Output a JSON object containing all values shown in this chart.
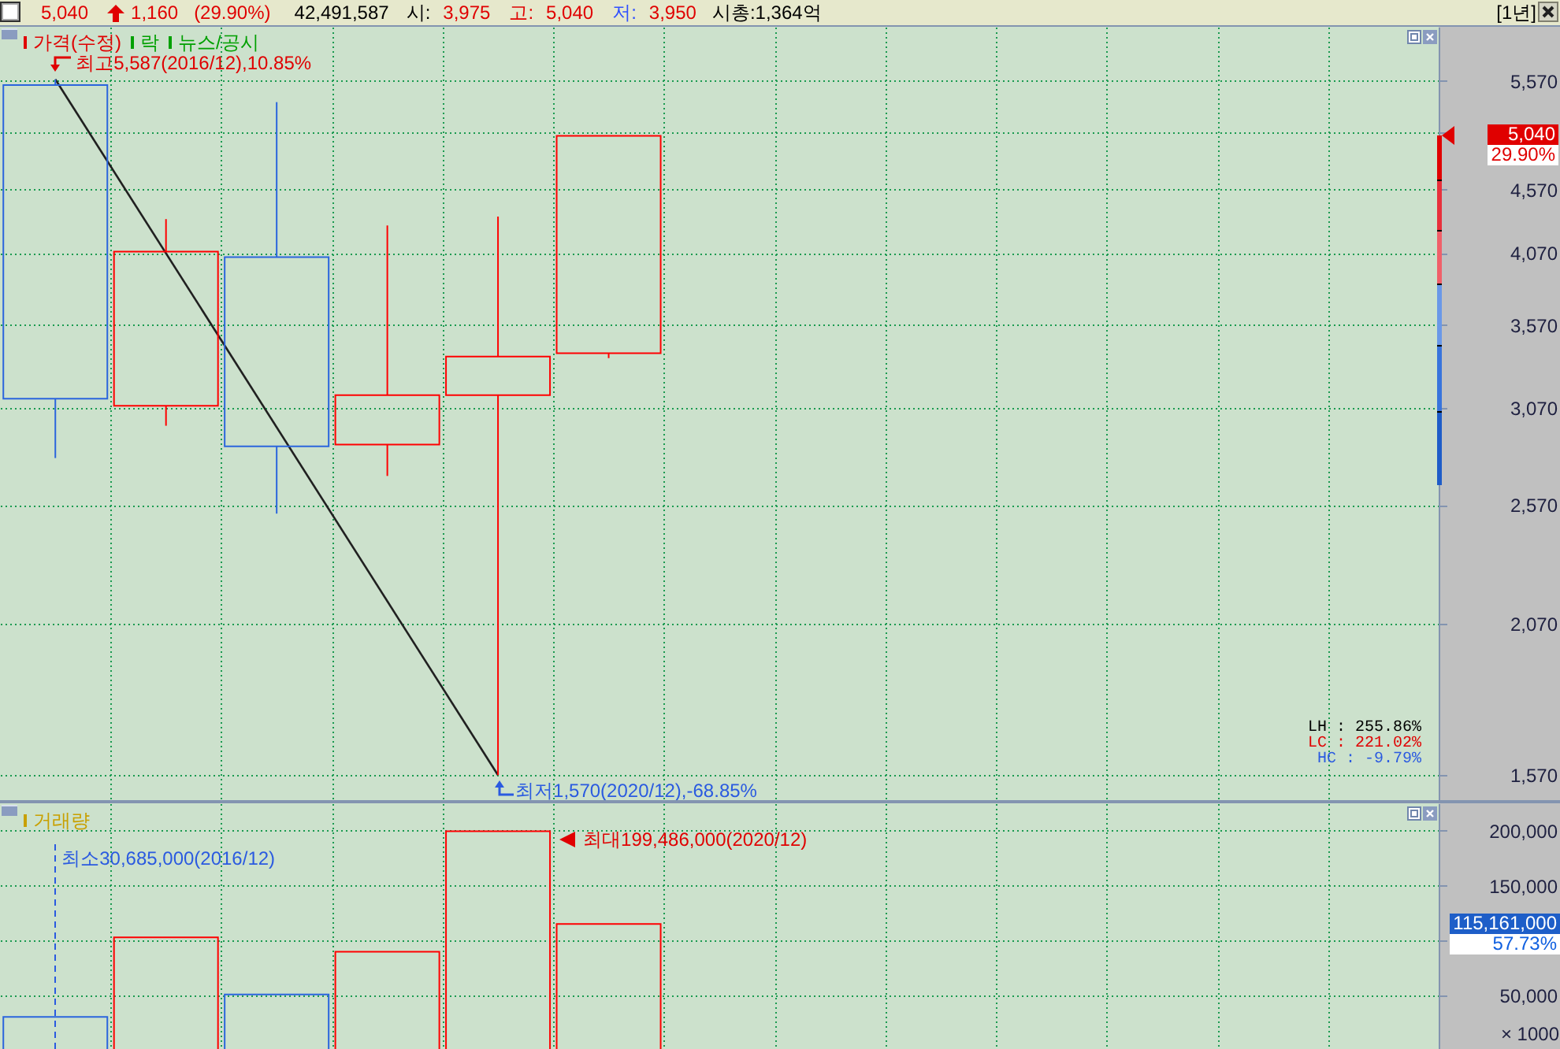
{
  "chart_data": [
    {
      "type": "other",
      "annotations": [
        "5,040",
        "1,160",
        "(29.90%)",
        "42,491,587",
        "시:",
        "3,975",
        "고:",
        "5,040",
        "저:",
        "3,950",
        "시총:1,364억",
        "[1년]"
      ]
    },
    {
      "type": "candlestick",
      "categories": [
        null,
        null,
        null,
        null,
        null,
        null,
        null,
        null,
        null,
        null,
        null,
        null,
        null
      ],
      "ohlc": [
        [
          5530,
          5587,
          2800,
          3120
        ],
        [
          3080,
          4330,
          2970,
          4080
        ],
        [
          4040,
          5360,
          2530,
          2860
        ],
        [
          2870,
          4280,
          2710,
          3140
        ],
        [
          3140,
          4350,
          1570,
          3370
        ],
        [
          3390,
          5040,
          3360,
          5040
        ],
        null,
        null,
        null,
        null,
        null,
        null,
        null
      ],
      "colors": [
        "#2b65dd",
        "#ff0000",
        "#2b65dd",
        "#ff0000",
        "#ff0000",
        "#ff0000",
        null,
        null,
        null,
        null,
        null,
        null,
        null
      ],
      "series": [
        {
          "type": "line",
          "color": "#202020",
          "values": [
            5587,
            null,
            null,
            null,
            1570,
            null,
            null,
            null,
            null,
            null,
            null,
            null,
            null
          ]
        }
      ],
      "log": true,
      "ylim": [
        1500,
        6150
      ],
      "yticks": [
        {
          "value": 1570,
          "label": "1,570"
        },
        {
          "value": 2070,
          "label": "2,070"
        },
        {
          "value": 2570,
          "label": "2,570"
        },
        {
          "value": 3070,
          "label": "3,070"
        },
        {
          "value": 3570,
          "label": "3,570"
        },
        {
          "value": 4070,
          "label": "4,070"
        },
        {
          "value": 4570,
          "label": "4,570"
        },
        {
          "value": 5070,
          "label": null
        },
        {
          "value": 5570,
          "label": "5,570"
        }
      ],
      "grid": true,
      "tick_labels": "y",
      "annotations": [
        "가격(수정)",
        "락",
        "뉴스/공시",
        "최고5,587(2016/12),10.85%",
        "최저1,570(2020/12),-68.85%",
        "5,040",
        "29.90%",
        "LH : 255.86%",
        "LC : 221.02%",
        "HC : -9.79%"
      ]
    },
    {
      "type": "bar",
      "categories": [
        null,
        null,
        null,
        null,
        null,
        null,
        null,
        null,
        null,
        null,
        null,
        null,
        null
      ],
      "values": [
        30685,
        103000,
        51000,
        90000,
        199486,
        115161,
        null,
        null,
        null,
        null,
        null,
        null,
        null
      ],
      "colors": [
        "#2b65dd",
        "#ff0000",
        "#2b65dd",
        "#ff0000",
        "#ff0000",
        "#ff0000",
        null,
        null,
        null,
        null,
        null,
        null,
        null
      ],
      "ylim": [
        0,
        225000
      ],
      "yticks": [
        {
          "value": 50000,
          "label": "50,000"
        },
        {
          "value": 100000,
          "label": null
        },
        {
          "value": 150000,
          "label": "150,000"
        },
        {
          "value": 200000,
          "label": "200,000"
        }
      ],
      "ylabel": "× 1000",
      "grid": true,
      "tick_labels": "y",
      "annotations": [
        "거래량",
        "최소30,685,000(2016/12)",
        "최대199,486,000(2020/12)",
        "115,161,000",
        "57.73%"
      ]
    }
  ]
}
